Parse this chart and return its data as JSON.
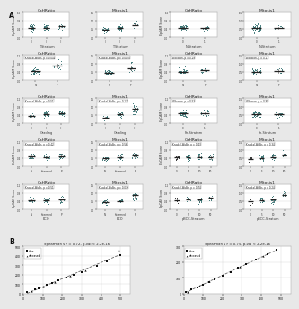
{
  "fig_bg": "#e8e8e8",
  "panel_bg": "#ffffff",
  "dot_color_teal": "#2d6b6b",
  "dot_color_dark": "#1a1a1a",
  "median_color": "#333333",
  "grid_color": "#cccccc",
  "row_configs": [
    [
      {
        "title": "CaHRatio",
        "ylabel": "EpCAM Score",
        "xlabel": "T-Stratum",
        "stat": null,
        "groups": [
          "I",
          "II",
          "III"
        ],
        "n_per": [
          40,
          40,
          15
        ],
        "means": [
          0.45,
          0.47,
          0.5
        ],
        "sds": [
          0.08,
          0.08,
          0.08
        ],
        "ylim": [
          0,
          1.2
        ]
      },
      {
        "title": "Mitosis1",
        "ylabel": "Slug Score",
        "xlabel": "T-Stratum",
        "stat": null,
        "groups": [
          "I",
          "II",
          "III"
        ],
        "n_per": [
          40,
          45,
          15
        ],
        "means": [
          0.45,
          0.55,
          0.75
        ],
        "sds": [
          0.09,
          0.1,
          0.12
        ],
        "ylim": [
          0,
          1.5
        ]
      },
      {
        "title": "CaHRatio",
        "ylabel": "EpCAM Score",
        "xlabel": "N-Stratum",
        "stat": null,
        "groups": [
          "0",
          "1"
        ],
        "n_per": [
          50,
          15
        ],
        "means": [
          0.47,
          0.44
        ],
        "sds": [
          0.08,
          0.08
        ],
        "ylim": [
          0,
          1.2
        ]
      },
      {
        "title": "Mitosis1",
        "ylabel": "Slug Score",
        "xlabel": "N-Stratum",
        "stat": null,
        "groups": [
          "0",
          "1"
        ],
        "n_per": [
          50,
          15
        ],
        "means": [
          0.55,
          0.52
        ],
        "sds": [
          0.11,
          0.1
        ],
        "ylim": [
          0,
          1.5
        ]
      }
    ],
    [
      {
        "title": "CaHRatio",
        "ylabel": "EpCAM Score",
        "xlabel": "",
        "stat": "Kruskal-Wallis, p = 0.042",
        "groups": [
          "N",
          "P"
        ],
        "n_per": [
          40,
          15
        ],
        "means": [
          0.44,
          0.7
        ],
        "sds": [
          0.08,
          0.12
        ],
        "ylim": [
          0,
          1.2
        ]
      },
      {
        "title": "Mitosis1",
        "ylabel": "Slug Score",
        "xlabel": "",
        "stat": "Kruskal-Wallis, p = 0.0070",
        "groups": [
          "N",
          "P"
        ],
        "n_per": [
          40,
          15
        ],
        "means": [
          0.45,
          0.9
        ],
        "sds": [
          0.09,
          0.15
        ],
        "ylim": [
          0,
          1.5
        ]
      },
      {
        "title": "CaHRatio",
        "ylabel": "EpCAM Score",
        "xlabel": "",
        "stat": "Wilcoxon, p = 0.19",
        "groups": [
          "N",
          "P"
        ],
        "n_per": [
          40,
          15
        ],
        "means": [
          0.44,
          0.5
        ],
        "sds": [
          0.08,
          0.09
        ],
        "ylim": [
          0,
          1.2
        ]
      },
      {
        "title": "Mitosis1",
        "ylabel": "Slug Score",
        "xlabel": "",
        "stat": "Wilcoxon, p = 0.17",
        "groups": [
          "N",
          "P"
        ],
        "n_per": [
          40,
          15
        ],
        "means": [
          0.52,
          0.58
        ],
        "sds": [
          0.1,
          0.11
        ],
        "ylim": [
          0,
          1.5
        ]
      }
    ],
    [
      {
        "title": "CaHRatio",
        "ylabel": "EpCAM Score",
        "xlabel": "Grading",
        "stat": "Kruskal-Wallis, p = 0.51",
        "groups": [
          "I",
          "II",
          "III"
        ],
        "n_per": [
          12,
          30,
          25
        ],
        "means": [
          0.38,
          0.45,
          0.5
        ],
        "sds": [
          0.06,
          0.08,
          0.08
        ],
        "ylim": [
          0,
          1.2
        ]
      },
      {
        "title": "Mitosis1",
        "ylabel": "Slug Score",
        "xlabel": "Grading",
        "stat": "Kruskal-Wallis, p ≈ 0.17",
        "groups": [
          "I",
          "II",
          "III"
        ],
        "n_per": [
          12,
          30,
          25
        ],
        "means": [
          0.35,
          0.52,
          0.8
        ],
        "sds": [
          0.07,
          0.1,
          0.15
        ],
        "ylim": [
          0,
          1.5
        ]
      },
      {
        "title": "CaHRatio",
        "ylabel": "EpCAM Score",
        "xlabel": "Fn-Stratum",
        "stat": "Wilcoxon, p = 0.53",
        "groups": [
          "0",
          "1"
        ],
        "n_per": [
          45,
          15
        ],
        "means": [
          0.46,
          0.49
        ],
        "sds": [
          0.08,
          0.08
        ],
        "ylim": [
          0,
          1.2
        ]
      },
      {
        "title": "Mitosis1",
        "ylabel": "Slug Score",
        "xlabel": "Fn-Stratum",
        "stat": "Wilcoxon, p = 0.95",
        "groups": [
          "0",
          "1"
        ],
        "n_per": [
          45,
          15
        ],
        "means": [
          0.55,
          0.56
        ],
        "sds": [
          0.11,
          0.11
        ],
        "ylim": [
          0,
          1.5
        ]
      }
    ],
    [
      {
        "title": "CaHRatio",
        "ylabel": "EpCAM Score",
        "xlabel": "",
        "stat": "Kruskal-Wallis, p = 0.42",
        "groups": [
          "N",
          "Intermed",
          "P"
        ],
        "n_per": [
          20,
          20,
          20
        ],
        "means": [
          0.45,
          0.44,
          0.47
        ],
        "sds": [
          0.07,
          0.07,
          0.07
        ],
        "ylim": [
          0,
          1.2
        ]
      },
      {
        "title": "Mitosis1",
        "ylabel": "Slug Score",
        "xlabel": "",
        "stat": "Kruskal-Wallis, p = 0.56",
        "groups": [
          "N",
          "Intermed",
          "P"
        ],
        "n_per": [
          20,
          20,
          20
        ],
        "means": [
          0.48,
          0.55,
          0.65
        ],
        "sds": [
          0.09,
          0.1,
          0.12
        ],
        "ylim": [
          0,
          1.5
        ]
      },
      {
        "title": "CaHRatio",
        "ylabel": "EpCAM Score",
        "xlabel": "",
        "stat": "Kruskal-Wallis, p = 0.43",
        "groups": [
          "0",
          "5",
          "10",
          "50"
        ],
        "n_per": [
          10,
          20,
          18,
          12
        ],
        "means": [
          0.44,
          0.45,
          0.46,
          0.5
        ],
        "sds": [
          0.07,
          0.07,
          0.07,
          0.08
        ],
        "ylim": [
          0,
          1.2
        ]
      },
      {
        "title": "Mitosis1",
        "ylabel": "Slug Score",
        "xlabel": "",
        "stat": "Kruskal-Wallis, p = 0.34",
        "groups": [
          "0",
          "5",
          "10",
          "50"
        ],
        "n_per": [
          10,
          20,
          18,
          12
        ],
        "means": [
          0.5,
          0.53,
          0.58,
          0.68
        ],
        "sds": [
          0.09,
          0.1,
          0.1,
          0.12
        ],
        "ylim": [
          0,
          1.5
        ]
      }
    ],
    [
      {
        "title": "CaHRatio",
        "ylabel": "EpCAM Score",
        "xlabel": "ECO",
        "stat": "Kruskal-Wallis, p = 0.51",
        "groups": [
          "N",
          "Intermed",
          "P"
        ],
        "n_per": [
          20,
          20,
          20
        ],
        "means": [
          0.44,
          0.44,
          0.46
        ],
        "sds": [
          0.07,
          0.07,
          0.07
        ],
        "ylim": [
          0,
          1.2
        ]
      },
      {
        "title": "Mitosis1",
        "ylabel": "Slug Score",
        "xlabel": "ECO",
        "stat": "Kruskal-Wallis, p = 0.036",
        "groups": [
          "N",
          "Intermed",
          "P"
        ],
        "n_per": [
          20,
          20,
          20
        ],
        "means": [
          0.45,
          0.55,
          0.8
        ],
        "sds": [
          0.09,
          0.1,
          0.15
        ],
        "ylim": [
          0,
          1.5
        ]
      },
      {
        "title": "CaHRatio",
        "ylabel": "EpCAM Score",
        "xlabel": "pBCC-Stratum",
        "stat": "Kruskal-Wallis, p = 0.74",
        "groups": [
          "0",
          "5",
          "10",
          "50"
        ],
        "n_per": [
          6,
          18,
          22,
          12
        ],
        "means": [
          0.44,
          0.45,
          0.46,
          0.5
        ],
        "sds": [
          0.07,
          0.07,
          0.07,
          0.08
        ],
        "ylim": [
          0,
          1.2
        ]
      },
      {
        "title": "Mitosis1",
        "ylabel": "Slug Score",
        "xlabel": "pBCC-Stratum",
        "stat": "Kruskal-Wallis, p = 0.24",
        "groups": [
          "0",
          "5",
          "10",
          "50"
        ],
        "n_per": [
          6,
          18,
          22,
          12
        ],
        "means": [
          0.5,
          0.55,
          0.62,
          0.82
        ],
        "sds": [
          0.09,
          0.1,
          0.12,
          0.16
        ],
        "ylim": [
          0,
          1.5
        ]
      }
    ]
  ],
  "scatter": [
    {
      "title": "Spearman's r = 0.72, p-val < 2.2e-16",
      "alive_x": [
        20,
        60,
        80,
        120,
        150,
        180,
        220,
        260,
        300,
        380,
        430,
        500
      ],
      "alive_y": [
        15,
        45,
        55,
        95,
        110,
        140,
        165,
        200,
        230,
        290,
        340,
        410
      ],
      "dec_x": [
        40,
        100,
        160,
        240,
        320,
        490
      ],
      "dec_y": [
        30,
        75,
        120,
        185,
        245,
        470
      ],
      "xlim": [
        0,
        550
      ],
      "ylim": [
        0,
        500
      ],
      "xticks": [
        0,
        100,
        200,
        300,
        400,
        500
      ],
      "yticks": [
        0,
        100,
        200,
        300,
        400,
        500
      ]
    },
    {
      "title": "Spearman's r = 0.75, p-val < 2.2e-16",
      "alive_x": [
        10,
        40,
        70,
        100,
        130,
        160,
        200,
        240,
        280,
        320,
        370,
        430,
        480
      ],
      "alive_y": [
        8,
        25,
        40,
        58,
        75,
        92,
        115,
        138,
        162,
        185,
        214,
        250,
        280
      ],
      "dec_x": [
        20,
        80,
        130,
        200,
        290,
        410
      ],
      "dec_y": [
        12,
        48,
        78,
        120,
        170,
        238
      ],
      "xlim": [
        0,
        550
      ],
      "ylim": [
        0,
        300
      ],
      "xticks": [
        0,
        100,
        200,
        300,
        400,
        500
      ],
      "yticks": [
        0,
        100,
        200,
        300
      ]
    }
  ]
}
